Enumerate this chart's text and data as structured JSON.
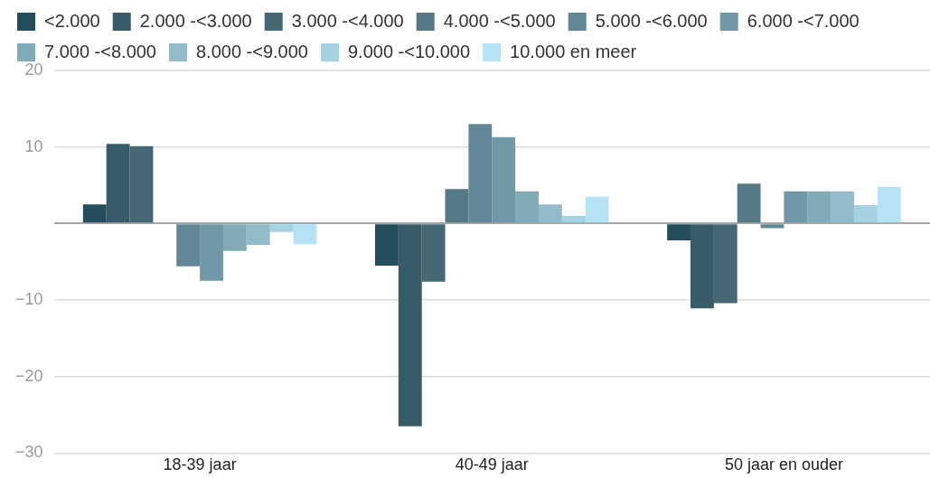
{
  "chart_data": {
    "type": "bar",
    "categories": [
      "18-39 jaar",
      "40-49 jaar",
      "50 jaar en ouder"
    ],
    "series": [
      {
        "name": "<2.000",
        "color": "#234d5a",
        "values": [
          2.5,
          -5.5,
          -2.2
        ]
      },
      {
        "name": "2.000 -<3.000",
        "color": "#375b67",
        "values": [
          10.4,
          -26.5,
          -11.1
        ]
      },
      {
        "name": "3.000 -<4.000",
        "color": "#466874",
        "values": [
          10.1,
          -7.6,
          -10.4
        ]
      },
      {
        "name": "4.000 -<5.000",
        "color": "#557985",
        "values": [
          0,
          4.5,
          5.2
        ]
      },
      {
        "name": "5.000 -<6.000",
        "color": "#628897",
        "values": [
          -5.6,
          13.0,
          -0.6
        ]
      },
      {
        "name": "6.000 -<7.000",
        "color": "#7098a6",
        "values": [
          -7.5,
          11.3,
          4.2
        ]
      },
      {
        "name": "7.000 -<8.000",
        "color": "#82abb8",
        "values": [
          -3.6,
          4.2,
          4.2
        ]
      },
      {
        "name": "8.000 -<9.000",
        "color": "#93bccb",
        "values": [
          -2.8,
          2.5,
          4.2
        ]
      },
      {
        "name": "9.000 -<10.000",
        "color": "#a4d2e2",
        "values": [
          -1.1,
          1.0,
          2.4
        ]
      },
      {
        "name": "10.000 en meer",
        "color": "#b5e2f4",
        "values": [
          -2.7,
          3.5,
          4.8
        ]
      }
    ],
    "ylim": [
      -30,
      20
    ],
    "yticks": [
      20,
      10,
      {
        "value": 0,
        "label": null
      },
      {
        "value": -10,
        "label": "−10"
      },
      {
        "value": -20,
        "label": "−20"
      },
      {
        "value": -30,
        "label": "−30"
      }
    ],
    "grid": "y",
    "legend": "top left"
  }
}
